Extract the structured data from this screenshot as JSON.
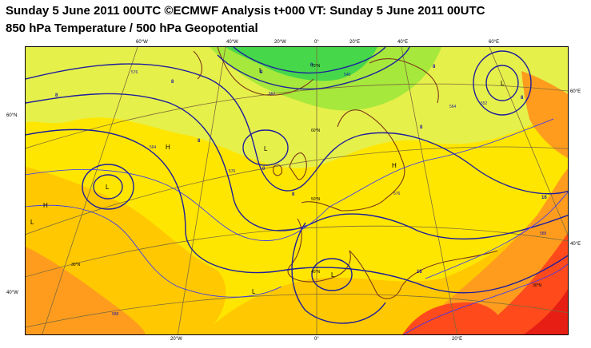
{
  "title_line1": "Sunday 5 June 2011 00UTC ©ECMWF Analysis t+000 VT: Sunday 5 June 2011 00UTC",
  "title_line2": "850 hPa Temperature / 500 hPa Geopotential",
  "map": {
    "top_lon_labels": [
      "60°W",
      "40°W",
      "20°W",
      "0°",
      "20°E",
      "40°E",
      "60°E"
    ],
    "bottom_lon_labels": [
      "20°W",
      "0°",
      "20°E"
    ],
    "left_lat_labels": [
      "60°N",
      "40°W"
    ],
    "right_lat_labels": [
      "60°E",
      "40°E"
    ],
    "inner_lat_labels": [
      "70°N",
      "60°N",
      "50°N",
      "40°N",
      "30°N",
      "30°N"
    ],
    "pressure_centres": [
      "L",
      "L",
      "L",
      "L",
      "L",
      "L",
      "H",
      "H",
      "H",
      "L"
    ],
    "geopotential_labels": [
      "576",
      "552",
      "540",
      "552",
      "564",
      "588",
      "576",
      "576",
      "564",
      "588"
    ],
    "temperature_labels": [
      "8",
      "8",
      "0",
      "0",
      "8",
      "8",
      "8",
      "8",
      "16",
      "16",
      "8",
      "0"
    ],
    "colors": {
      "very_cold": "#46d74a",
      "cold": "#a6e83c",
      "cool": "#e6f04a",
      "mild": "#ffe600",
      "warm": "#ffc800",
      "warmer": "#ff9c1e",
      "hot": "#ff4a1c",
      "very_hot": "#e61e14",
      "geopotential_line": "#1e1e9c",
      "isotherm_line": "#3232ff",
      "coastline": "#7a3a1a",
      "graticule": "#7d6c3a"
    }
  }
}
